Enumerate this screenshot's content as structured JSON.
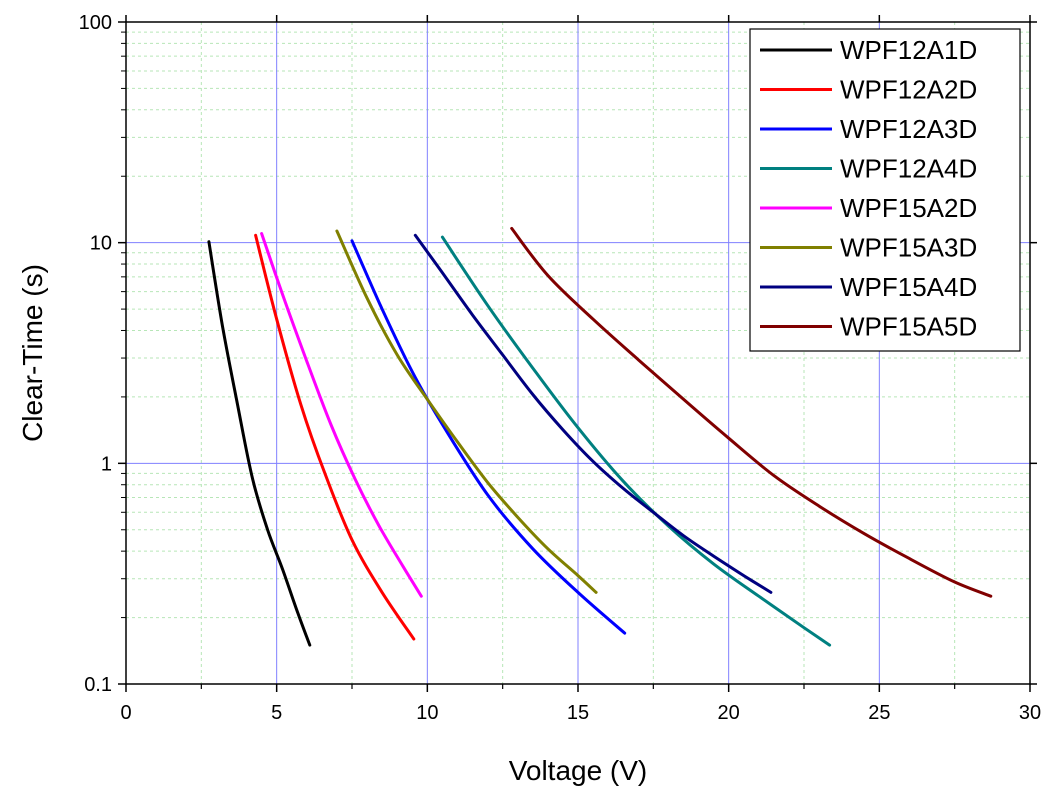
{
  "chart_data": {
    "type": "line",
    "title": "",
    "xlabel": "Voltage (V)",
    "ylabel": "Clear-Time (s)",
    "xlim": [
      0,
      30
    ],
    "ylim": [
      0.1,
      100
    ],
    "y_scale": "log",
    "x_ticks": [
      0,
      5,
      10,
      15,
      20,
      25,
      30
    ],
    "y_ticks": [
      0.1,
      1,
      10,
      100
    ],
    "x_tick_labels": [
      "0",
      "5",
      "10",
      "15",
      "20",
      "25",
      "30"
    ],
    "y_tick_labels": [
      "0.1",
      "1",
      "10",
      "100"
    ],
    "grid": true,
    "legend_position": "top-right",
    "series": [
      {
        "name": "WPF12A1D",
        "color": "#000000",
        "x": [
          2.75,
          3.2,
          3.7,
          4.2,
          4.7,
          5.2,
          5.7,
          6.1
        ],
        "y": [
          10.1,
          4.2,
          1.85,
          0.85,
          0.5,
          0.33,
          0.21,
          0.15
        ]
      },
      {
        "name": "WPF12A2D",
        "color": "#ff0000",
        "x": [
          4.3,
          5.0,
          5.8,
          6.6,
          7.5,
          8.5,
          9.55
        ],
        "y": [
          10.8,
          4.5,
          1.85,
          0.9,
          0.45,
          0.26,
          0.16
        ]
      },
      {
        "name": "WPF12A3D",
        "color": "#0000ff",
        "x": [
          7.5,
          8.5,
          9.5,
          10.5,
          12.0,
          13.5,
          15.0,
          16.55
        ],
        "y": [
          10.2,
          5.0,
          2.6,
          1.5,
          0.72,
          0.41,
          0.26,
          0.17
        ]
      },
      {
        "name": "WPF12A4D",
        "color": "#008080",
        "x": [
          10.5,
          12.0,
          13.5,
          15.0,
          16.5,
          18.0,
          19.5,
          21.0,
          22.5,
          23.35
        ],
        "y": [
          10.6,
          5.2,
          2.7,
          1.45,
          0.83,
          0.52,
          0.35,
          0.25,
          0.18,
          0.15
        ]
      },
      {
        "name": "WPF15A2D",
        "color": "#ff00ff",
        "x": [
          4.5,
          5.2,
          6.0,
          6.8,
          7.6,
          8.4,
          9.2,
          9.8
        ],
        "y": [
          11.0,
          5.8,
          2.9,
          1.5,
          0.85,
          0.52,
          0.34,
          0.25
        ]
      },
      {
        "name": "WPF15A3D",
        "color": "#808000",
        "x": [
          7.0,
          8.0,
          9.0,
          10.0,
          11.0,
          12.0,
          13.0,
          14.0,
          15.0,
          15.6
        ],
        "y": [
          11.3,
          5.6,
          3.1,
          1.95,
          1.25,
          0.82,
          0.57,
          0.41,
          0.31,
          0.26
        ]
      },
      {
        "name": "WPF15A4D",
        "color": "#000080",
        "x": [
          9.6,
          10.5,
          11.5,
          12.5,
          13.5,
          14.5,
          15.5,
          16.5,
          17.5,
          18.5,
          19.5,
          20.5,
          21.4
        ],
        "y": [
          10.8,
          7.3,
          4.7,
          3.1,
          2.05,
          1.42,
          1.02,
          0.77,
          0.6,
          0.47,
          0.38,
          0.31,
          0.26
        ]
      },
      {
        "name": "WPF15A5D",
        "color": "#800000",
        "x": [
          12.8,
          14.0,
          15.5,
          17.0,
          18.5,
          20.0,
          21.5,
          23.0,
          24.5,
          26.0,
          27.5,
          28.7
        ],
        "y": [
          11.6,
          7.1,
          4.5,
          2.95,
          1.95,
          1.3,
          0.88,
          0.64,
          0.48,
          0.37,
          0.29,
          0.25
        ]
      }
    ]
  }
}
